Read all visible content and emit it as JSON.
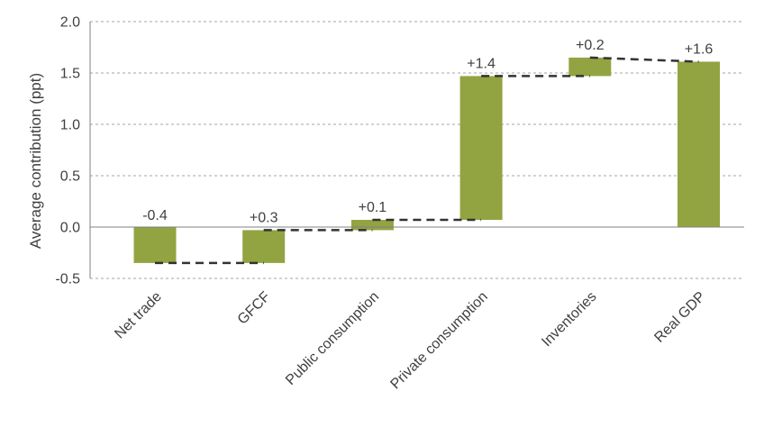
{
  "chart_data": {
    "type": "bar",
    "subtype": "waterfall",
    "title": "",
    "xlabel": "",
    "ylabel": "Average contribution (ppt)",
    "ylim": [
      -0.5,
      2.0
    ],
    "yticks": [
      -0.5,
      0.0,
      0.5,
      1.0,
      1.5,
      2.0
    ],
    "ytick_labels": [
      "-0.5",
      "0.0",
      "0.5",
      "1.0",
      "1.5",
      "2.0"
    ],
    "grid": true,
    "legend": "none",
    "bar_color": "#92a441",
    "connector_color": "#333333",
    "categories": [
      "Net trade",
      "GFCF",
      "Public consumption",
      "Private consumption",
      "Inventories",
      "Real GDP"
    ],
    "values": [
      -0.35,
      0.32,
      0.1,
      1.4,
      0.18,
      1.61
    ],
    "bar_start": [
      0.0,
      -0.35,
      -0.03,
      0.07,
      1.47,
      0.0
    ],
    "bar_end": [
      -0.35,
      -0.03,
      0.07,
      1.47,
      1.65,
      1.61
    ],
    "data_labels": [
      "-0.4",
      "+0.3",
      "+0.1",
      "+1.4",
      "+0.2",
      "+1.6"
    ]
  }
}
